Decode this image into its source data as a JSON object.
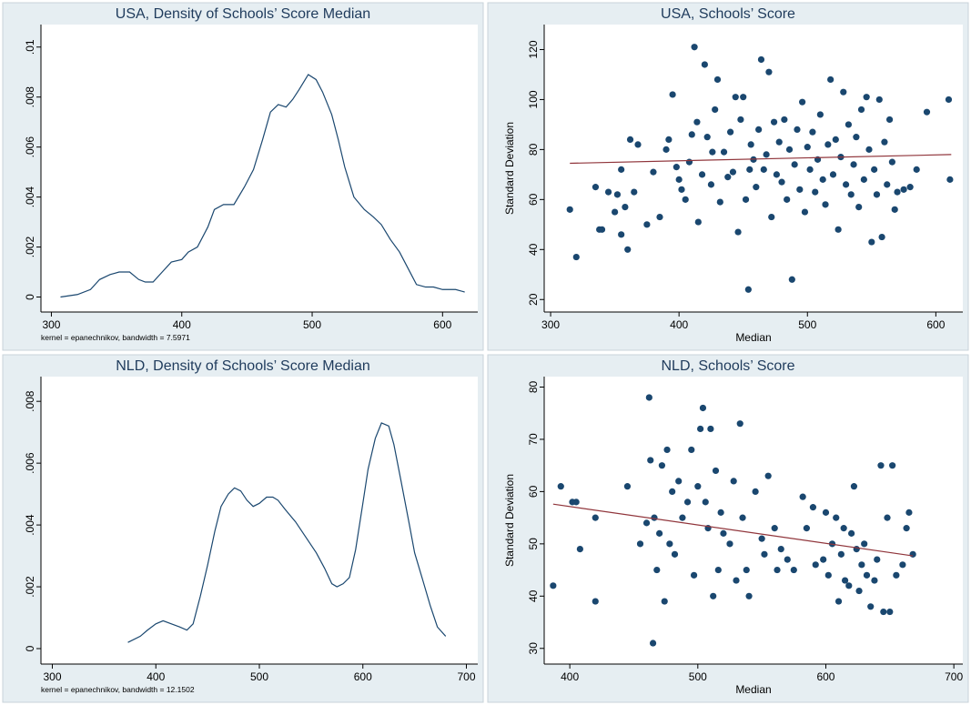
{
  "chart_data": [
    {
      "type": "line",
      "title": "USA, Density of Schools’ Score Median",
      "note": "kernel = epanechnikov, bandwidth = 7.5971",
      "color": "#1a476f",
      "x": [
        307,
        320,
        330,
        337,
        345,
        352,
        360,
        367,
        372,
        378,
        385,
        392,
        400,
        405,
        412,
        420,
        425,
        432,
        440,
        448,
        455,
        462,
        468,
        474,
        480,
        485,
        490,
        497,
        503,
        508,
        515,
        520,
        525,
        532,
        540,
        547,
        553,
        560,
        567,
        573,
        580,
        587,
        593,
        600,
        610,
        617
      ],
      "values": [
        0,
        0.0001,
        0.0003,
        0.0007,
        0.0009,
        0.001,
        0.001,
        0.0007,
        0.0006,
        0.0006,
        0.001,
        0.0014,
        0.0015,
        0.0018,
        0.002,
        0.0028,
        0.0035,
        0.0037,
        0.0037,
        0.0044,
        0.0051,
        0.0063,
        0.0074,
        0.0077,
        0.0076,
        0.0079,
        0.0083,
        0.0089,
        0.0087,
        0.0082,
        0.0073,
        0.0063,
        0.0052,
        0.004,
        0.0035,
        0.0032,
        0.0029,
        0.0023,
        0.0018,
        0.0012,
        0.0005,
        0.0004,
        0.0004,
        0.0003,
        0.0003,
        0.0002
      ],
      "xlim": [
        292,
        627
      ],
      "xticks": [
        300,
        400,
        500,
        600
      ],
      "ylim": [
        -0.0006,
        0.0109
      ],
      "yticks": [
        0,
        {
          "value": 0.002,
          "label": ".002"
        },
        {
          "value": 0.004,
          "label": ".004"
        },
        {
          "value": 0.006,
          "label": ".006"
        },
        {
          "value": 0.008,
          "label": ".008"
        },
        {
          "value": 0.01,
          "label": ".01"
        }
      ],
      "grid": false
    },
    {
      "type": "scatter",
      "title": "USA, Schools’ Score",
      "x_label": "Median",
      "y_label": "Standard Deviation",
      "color": "#1a476f",
      "x": [
        315,
        320,
        335,
        338,
        340,
        345,
        350,
        352,
        355,
        355,
        358,
        360,
        362,
        365,
        368,
        375,
        380,
        385,
        390,
        392,
        395,
        398,
        400,
        402,
        405,
        408,
        410,
        412,
        414,
        415,
        418,
        420,
        422,
        425,
        426,
        428,
        430,
        432,
        435,
        438,
        440,
        442,
        444,
        446,
        448,
        450,
        452,
        454,
        455,
        456,
        458,
        460,
        462,
        464,
        466,
        468,
        470,
        472,
        474,
        476,
        478,
        480,
        482,
        484,
        486,
        488,
        490,
        492,
        494,
        496,
        498,
        500,
        502,
        504,
        506,
        508,
        510,
        512,
        514,
        516,
        518,
        520,
        522,
        524,
        526,
        528,
        530,
        532,
        534,
        536,
        538,
        540,
        542,
        544,
        546,
        548,
        550,
        552,
        554,
        556,
        558,
        560,
        562,
        564,
        566,
        568,
        570,
        575,
        580,
        585,
        593,
        610,
        611
      ],
      "values": [
        56,
        37,
        65,
        48,
        48,
        63,
        55,
        62,
        72,
        46,
        57,
        40,
        84,
        63,
        82,
        50,
        71,
        53,
        80,
        84,
        102,
        73,
        68,
        64,
        60,
        75,
        86,
        121,
        91,
        51,
        70,
        114,
        85,
        66,
        79,
        96,
        108,
        59,
        79,
        69,
        87,
        71,
        101,
        47,
        92,
        101,
        60,
        24,
        72,
        82,
        76,
        65,
        88,
        116,
        72,
        78,
        111,
        53,
        91,
        70,
        83,
        67,
        92,
        60,
        80,
        28,
        74,
        88,
        64,
        99,
        55,
        81,
        72,
        87,
        63,
        76,
        94,
        68,
        58,
        82,
        108,
        70,
        84,
        48,
        77,
        103,
        66,
        90,
        62,
        74,
        85,
        57,
        96,
        68,
        101,
        80,
        43,
        72,
        62,
        100,
        45,
        83,
        66,
        92,
        75,
        56,
        63,
        64,
        65,
        72,
        95,
        100,
        68
      ],
      "fit": {
        "color": "#90353b",
        "x": [
          315,
          612
        ],
        "values": [
          74.5,
          78
        ]
      },
      "xlim": [
        295,
        621
      ],
      "xticks": [
        300,
        400,
        500,
        600
      ],
      "ylim": [
        15,
        130
      ],
      "yticks": [
        20,
        40,
        60,
        80,
        100,
        120
      ],
      "grid": false
    },
    {
      "type": "line",
      "title": "NLD, Density of Schools’ Score Median",
      "note": "kernel = epanechnikov, bandwidth = 12.1502",
      "color": "#1a476f",
      "x": [
        373,
        385,
        392,
        400,
        407,
        415,
        423,
        430,
        436,
        443,
        450,
        457,
        463,
        470,
        476,
        482,
        488,
        494,
        500,
        507,
        513,
        518,
        525,
        535,
        545,
        555,
        563,
        570,
        575,
        581,
        587,
        593,
        600,
        605,
        612,
        618,
        625,
        630,
        637,
        645,
        650,
        658,
        665,
        672,
        680
      ],
      "values": [
        0.0002,
        0.0004,
        0.0006,
        0.0008,
        0.0009,
        0.0008,
        0.0007,
        0.0006,
        0.0008,
        0.0017,
        0.0027,
        0.0038,
        0.0046,
        0.005,
        0.0052,
        0.0051,
        0.0048,
        0.0046,
        0.0047,
        0.0049,
        0.0049,
        0.0048,
        0.0045,
        0.0041,
        0.0036,
        0.0031,
        0.0026,
        0.0021,
        0.002,
        0.0021,
        0.0023,
        0.0032,
        0.0047,
        0.0058,
        0.0068,
        0.0073,
        0.0072,
        0.0066,
        0.0054,
        0.004,
        0.0031,
        0.0022,
        0.0014,
        0.0007,
        0.0004
      ],
      "xlim": [
        289,
        711
      ],
      "xticks": [
        300,
        400,
        500,
        600,
        700
      ],
      "ylim": [
        -0.0005,
        0.0088
      ],
      "yticks": [
        0,
        {
          "value": 0.002,
          "label": ".002"
        },
        {
          "value": 0.004,
          "label": ".004"
        },
        {
          "value": 0.006,
          "label": ".006"
        },
        {
          "value": 0.008,
          "label": ".008"
        }
      ],
      "grid": false
    },
    {
      "type": "scatter",
      "title": "NLD, Schools’ Score",
      "x_label": "Median",
      "y_label": "Standard Deviation",
      "color": "#1a476f",
      "x": [
        387,
        393,
        402,
        405,
        408,
        420,
        420,
        445,
        455,
        460,
        462,
        463,
        465,
        466,
        468,
        470,
        472,
        474,
        476,
        478,
        480,
        482,
        485,
        488,
        492,
        495,
        497,
        500,
        502,
        504,
        506,
        508,
        510,
        512,
        514,
        516,
        518,
        520,
        525,
        528,
        530,
        533,
        535,
        538,
        540,
        545,
        550,
        552,
        555,
        560,
        562,
        565,
        570,
        575,
        582,
        585,
        590,
        592,
        598,
        600,
        602,
        605,
        608,
        610,
        612,
        614,
        615,
        618,
        620,
        622,
        624,
        626,
        628,
        630,
        632,
        635,
        638,
        640,
        643,
        645,
        648,
        650,
        652,
        655,
        660,
        663,
        665,
        668
      ],
      "values": [
        42,
        61,
        58,
        58,
        49,
        55,
        39,
        61,
        50,
        54,
        78,
        66,
        31,
        55,
        45,
        52,
        65,
        39,
        68,
        50,
        60,
        48,
        62,
        55,
        58,
        68,
        44,
        61,
        72,
        76,
        58,
        53,
        72,
        40,
        64,
        45,
        56,
        52,
        50,
        62,
        43,
        73,
        55,
        45,
        40,
        60,
        51,
        48,
        63,
        53,
        45,
        49,
        47,
        45,
        59,
        53,
        57,
        46,
        47,
        56,
        44,
        50,
        55,
        39,
        48,
        53,
        43,
        42,
        52,
        61,
        49,
        41,
        46,
        50,
        44,
        38,
        43,
        47,
        65,
        37,
        55,
        37,
        65,
        44,
        46,
        53,
        56,
        48
      ],
      "fit": {
        "color": "#90353b",
        "x": [
          387,
          668
        ],
        "values": [
          57.6,
          47.7
        ]
      },
      "xlim": [
        380,
        707
      ],
      "xticks": [
        400,
        500,
        600,
        700
      ],
      "ylim": [
        27,
        82
      ],
      "yticks": [
        30,
        40,
        50,
        60,
        70,
        80
      ],
      "grid": false
    }
  ]
}
